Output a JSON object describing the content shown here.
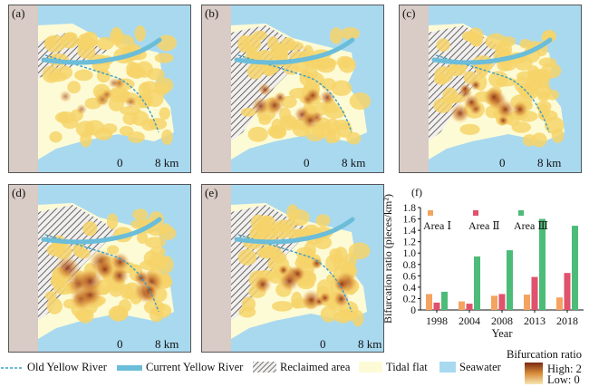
{
  "panels": [
    {
      "label": "(a)",
      "scale_zero": "0",
      "scale_km": "8 km"
    },
    {
      "label": "(b)",
      "scale_zero": "0",
      "scale_km": "8 km"
    },
    {
      "label": "(c)",
      "scale_zero": "0",
      "scale_km": "8 km"
    },
    {
      "label": "(d)",
      "scale_zero": "0",
      "scale_km": "8 km"
    },
    {
      "label": "(e)",
      "scale_zero": "0",
      "scale_km": "8 km"
    }
  ],
  "colors": {
    "seawater": "#a9d9ef",
    "tidal_flat": "#fdfbd6",
    "land": "#d9cbc6",
    "river": "#6bbdd9",
    "area1": "#f4a460",
    "area2": "#e0526d",
    "area3": "#4cbc78"
  },
  "legend": {
    "old_river": "Old Yellow River",
    "current_river": "Current Yellow River",
    "reclaimed": "Reclaimed area",
    "tidal_flat": "Tidal flat",
    "seawater": "Seawater",
    "ramp_title": "Bifurcation ratio",
    "ramp_high": "High: 2",
    "ramp_low": "Low: 0"
  },
  "chart_data": {
    "type": "bar",
    "panel_label": "(f)",
    "categories": [
      "1998",
      "2004",
      "2008",
      "2013",
      "2018"
    ],
    "series": [
      {
        "name": "Area Ⅰ",
        "color": "#f4a460",
        "values": [
          0.28,
          0.15,
          0.25,
          0.27,
          0.22
        ]
      },
      {
        "name": "Area Ⅱ",
        "color": "#e0526d",
        "values": [
          0.13,
          0.11,
          0.28,
          0.58,
          0.65
        ]
      },
      {
        "name": "Area Ⅲ",
        "color": "#4cbc78",
        "values": [
          0.32,
          0.94,
          1.05,
          1.6,
          1.48
        ]
      }
    ],
    "xlabel": "Year",
    "ylabel": "Bifurcation ratio (pieces/km²)",
    "ylim": [
      0,
      1.8
    ],
    "yticks": [
      "0",
      "0.2",
      "0.4",
      "0.6",
      "0.8",
      "1.0",
      "1.2",
      "1.4",
      "1.6",
      "1.8"
    ],
    "legend_position": "top"
  }
}
